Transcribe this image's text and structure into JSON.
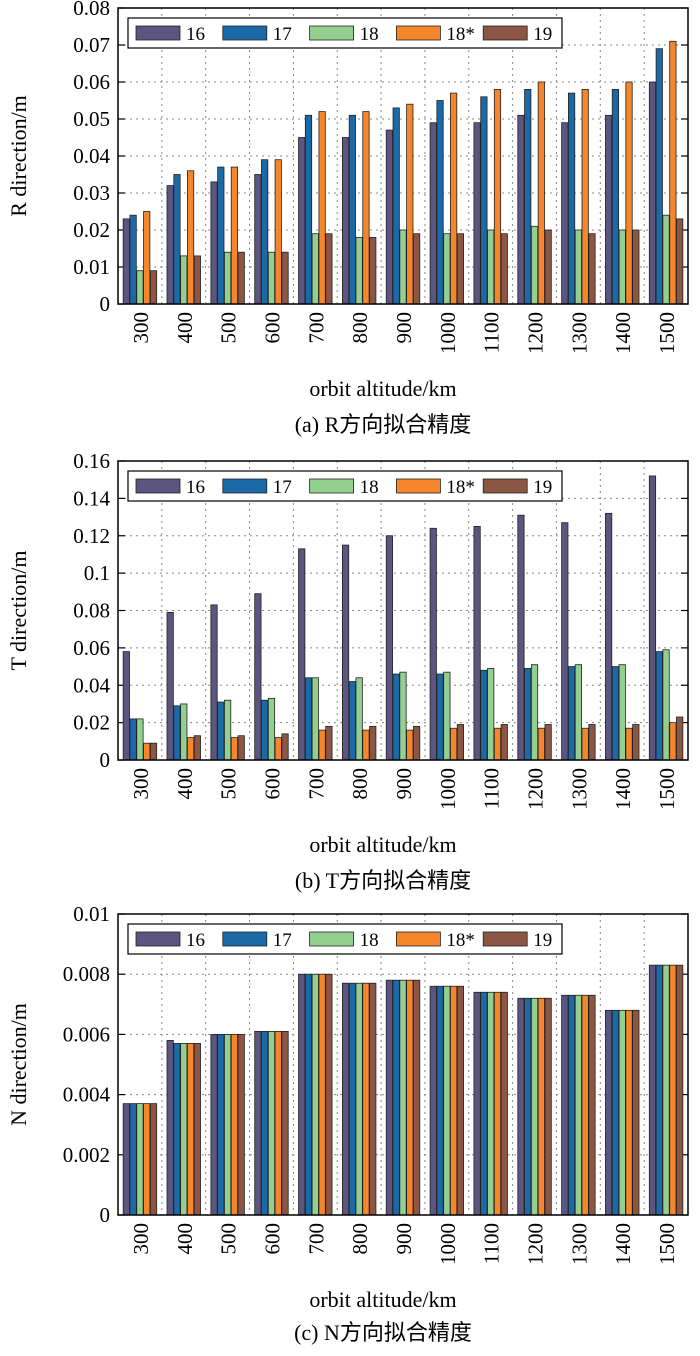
{
  "series_colors": [
    "#5b5580",
    "#1c69a8",
    "#93cf8e",
    "#f5862c",
    "#8b5744"
  ],
  "chart_data": [
    {
      "type": "bar",
      "categories": [
        "300",
        "400",
        "500",
        "600",
        "700",
        "800",
        "900",
        "1000",
        "1100",
        "1200",
        "1300",
        "1400",
        "1500"
      ],
      "series": [
        {
          "name": "16",
          "values": [
            0.023,
            0.032,
            0.033,
            0.035,
            0.045,
            0.045,
            0.047,
            0.049,
            0.049,
            0.051,
            0.049,
            0.051,
            0.06
          ]
        },
        {
          "name": "17",
          "values": [
            0.024,
            0.035,
            0.037,
            0.039,
            0.051,
            0.051,
            0.053,
            0.055,
            0.056,
            0.058,
            0.057,
            0.058,
            0.069
          ]
        },
        {
          "name": "18",
          "values": [
            0.009,
            0.013,
            0.014,
            0.014,
            0.019,
            0.018,
            0.02,
            0.019,
            0.02,
            0.021,
            0.02,
            0.02,
            0.024
          ]
        },
        {
          "name": "18*",
          "values": [
            0.025,
            0.036,
            0.037,
            0.039,
            0.052,
            0.052,
            0.054,
            0.057,
            0.058,
            0.06,
            0.058,
            0.06,
            0.071
          ]
        },
        {
          "name": "19",
          "values": [
            0.009,
            0.013,
            0.014,
            0.014,
            0.019,
            0.018,
            0.019,
            0.019,
            0.019,
            0.02,
            0.019,
            0.02,
            0.023
          ]
        }
      ],
      "yticks": [
        "0",
        "0.01",
        "0.02",
        "0.03",
        "0.04",
        "0.05",
        "0.06",
        "0.07",
        "0.08"
      ],
      "ylim": [
        0,
        0.08
      ],
      "ylabel": "R direction/m",
      "xlabel": "orbit altitude/km",
      "caption": "(a) R方向拟合精度",
      "grid": true,
      "legend_position": "top"
    },
    {
      "type": "bar",
      "categories": [
        "300",
        "400",
        "500",
        "600",
        "700",
        "800",
        "900",
        "1000",
        "1100",
        "1200",
        "1300",
        "1400",
        "1500"
      ],
      "series": [
        {
          "name": "16",
          "values": [
            0.058,
            0.079,
            0.083,
            0.089,
            0.113,
            0.115,
            0.12,
            0.124,
            0.125,
            0.131,
            0.127,
            0.132,
            0.152
          ]
        },
        {
          "name": "17",
          "values": [
            0.022,
            0.029,
            0.031,
            0.032,
            0.044,
            0.042,
            0.046,
            0.046,
            0.048,
            0.049,
            0.05,
            0.05,
            0.058
          ]
        },
        {
          "name": "18",
          "values": [
            0.022,
            0.03,
            0.032,
            0.033,
            0.044,
            0.044,
            0.047,
            0.047,
            0.049,
            0.051,
            0.051,
            0.051,
            0.059
          ]
        },
        {
          "name": "18*",
          "values": [
            0.009,
            0.012,
            0.012,
            0.012,
            0.016,
            0.016,
            0.016,
            0.017,
            0.017,
            0.017,
            0.017,
            0.017,
            0.02
          ]
        },
        {
          "name": "19",
          "values": [
            0.009,
            0.013,
            0.013,
            0.014,
            0.018,
            0.018,
            0.018,
            0.019,
            0.019,
            0.019,
            0.019,
            0.019,
            0.023
          ]
        }
      ],
      "yticks": [
        "0",
        "0.02",
        "0.04",
        "0.06",
        "0.08",
        "0.1",
        "0.12",
        "0.14",
        "0.16"
      ],
      "ylim": [
        0,
        0.16
      ],
      "ylabel": "T direction/m",
      "xlabel": "orbit altitude/km",
      "caption": "(b) T方向拟合精度",
      "grid": true,
      "legend_position": "top"
    },
    {
      "type": "bar",
      "categories": [
        "300",
        "400",
        "500",
        "600",
        "700",
        "800",
        "900",
        "1000",
        "1100",
        "1200",
        "1300",
        "1400",
        "1500"
      ],
      "series": [
        {
          "name": "16",
          "values": [
            0.0037,
            0.0058,
            0.006,
            0.0061,
            0.008,
            0.0077,
            0.0078,
            0.0076,
            0.0074,
            0.0072,
            0.0073,
            0.0068,
            0.0083
          ]
        },
        {
          "name": "17",
          "values": [
            0.0037,
            0.0057,
            0.006,
            0.0061,
            0.008,
            0.0077,
            0.0078,
            0.0076,
            0.0074,
            0.0072,
            0.0073,
            0.0068,
            0.0083
          ]
        },
        {
          "name": "18",
          "values": [
            0.0037,
            0.0057,
            0.006,
            0.0061,
            0.008,
            0.0077,
            0.0078,
            0.0076,
            0.0074,
            0.0072,
            0.0073,
            0.0068,
            0.0083
          ]
        },
        {
          "name": "18*",
          "values": [
            0.0037,
            0.0057,
            0.006,
            0.0061,
            0.008,
            0.0077,
            0.0078,
            0.0076,
            0.0074,
            0.0072,
            0.0073,
            0.0068,
            0.0083
          ]
        },
        {
          "name": "19",
          "values": [
            0.0037,
            0.0057,
            0.006,
            0.0061,
            0.008,
            0.0077,
            0.0078,
            0.0076,
            0.0074,
            0.0072,
            0.0073,
            0.0068,
            0.0083
          ]
        }
      ],
      "yticks": [
        "0",
        "0.002",
        "0.004",
        "0.006",
        "0.008",
        "0.01"
      ],
      "ylim": [
        0,
        0.01
      ],
      "ylabel": "N direction/m",
      "xlabel": "orbit altitude/km",
      "caption": "(c) N方向拟合精度",
      "grid": true,
      "legend_position": "top"
    }
  ]
}
